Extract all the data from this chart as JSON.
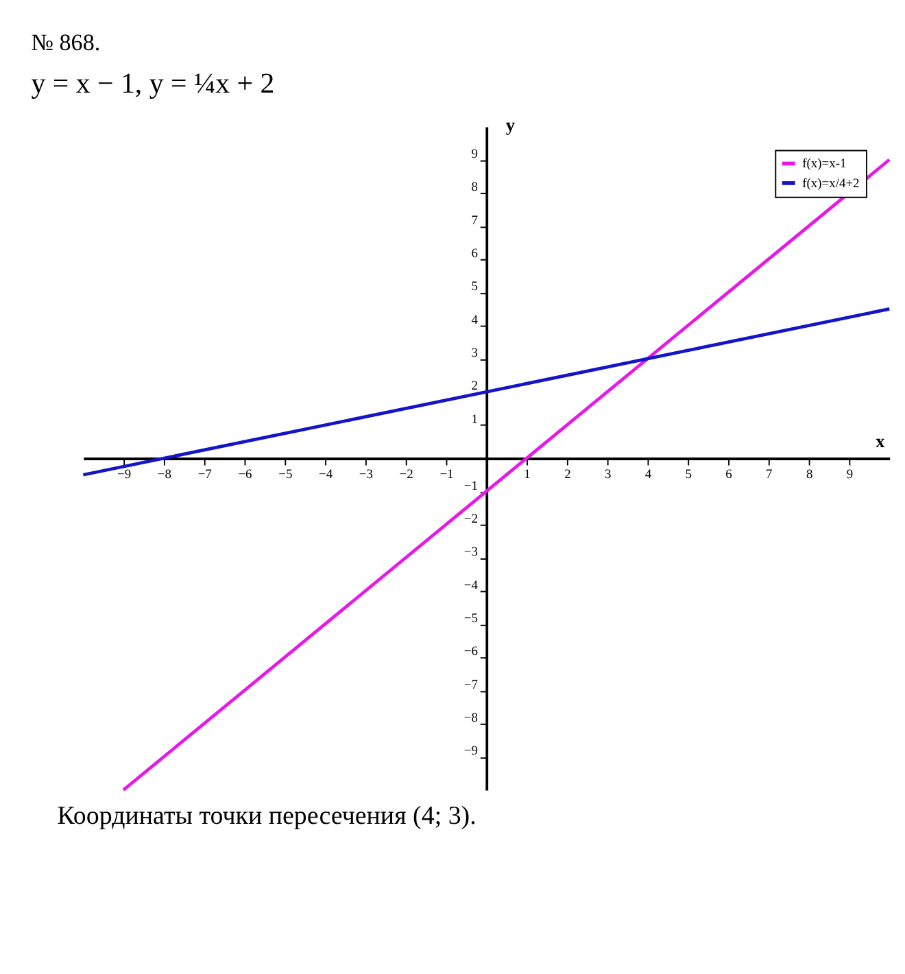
{
  "chart_data": {
    "type": "line",
    "title": "№ 868.",
    "subtitle": "y = x − 1,      y = ¼x + 2",
    "xlabel": "x",
    "ylabel": "y",
    "annotations": [
      "Координаты точки пересечения (4; 3)."
    ],
    "series": [
      {
        "name": "f(x)=x-1",
        "color": "#e619e6",
        "x": [
          -9,
          10
        ],
        "values": [
          -10,
          9
        ]
      },
      {
        "name": "f(x)=x/4+2",
        "color": "#1414c8",
        "x": [
          -10,
          10
        ],
        "values": [
          -0.5,
          4.5
        ]
      }
    ],
    "xlim": [
      -10,
      10
    ],
    "ylim": [
      -10,
      10
    ],
    "xticks": [
      -9,
      -8,
      -7,
      -6,
      -5,
      -4,
      -3,
      -2,
      -1,
      1,
      2,
      3,
      4,
      5,
      6,
      7,
      8,
      9
    ],
    "yticks": [
      -9,
      -8,
      -7,
      -6,
      -5,
      -4,
      -3,
      -2,
      -1,
      1,
      2,
      3,
      4,
      5,
      6,
      7,
      8,
      9
    ],
    "legend": "top right",
    "grid": false,
    "line_style": "solid",
    "marker": "none"
  }
}
